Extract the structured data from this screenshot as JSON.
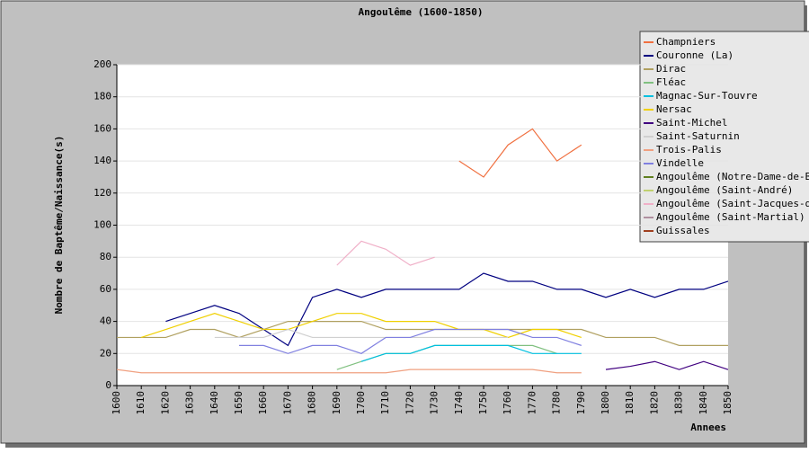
{
  "chart_data": {
    "type": "line",
    "title": "Angoulême (1600-1850)",
    "x_label": "Annees",
    "y_label": "Nombre de Baptême/Naissance(s)",
    "x": [
      1600,
      1610,
      1620,
      1630,
      1640,
      1650,
      1660,
      1670,
      1680,
      1690,
      1700,
      1710,
      1720,
      1730,
      1740,
      1750,
      1760,
      1770,
      1780,
      1790,
      1800,
      1810,
      1820,
      1830,
      1840,
      1850
    ],
    "xlim": [
      1600,
      1850
    ],
    "ylim": [
      0,
      200
    ],
    "yticks": [
      0,
      20,
      40,
      60,
      80,
      100,
      120,
      140,
      160,
      180,
      200
    ],
    "grid": true,
    "legend": "top-right",
    "series": [
      {
        "name": "Champniers",
        "color": "#f07040",
        "values": [
          null,
          null,
          null,
          null,
          null,
          null,
          null,
          null,
          null,
          null,
          null,
          null,
          null,
          null,
          140,
          130,
          150,
          160,
          140,
          150,
          null,
          null,
          null,
          null,
          null,
          null
        ]
      },
      {
        "name": "Couronne (La)",
        "color": "#000080",
        "values": [
          null,
          null,
          40,
          45,
          50,
          45,
          35,
          25,
          55,
          60,
          55,
          60,
          60,
          60,
          60,
          70,
          65,
          65,
          60,
          60,
          55,
          60,
          55,
          60,
          60,
          65
        ]
      },
      {
        "name": "Dirac",
        "color": "#b0a060",
        "values": [
          30,
          30,
          30,
          35,
          35,
          30,
          35,
          40,
          40,
          40,
          40,
          35,
          35,
          35,
          35,
          35,
          35,
          35,
          35,
          35,
          30,
          30,
          30,
          25,
          25,
          25
        ]
      },
      {
        "name": "Fléac",
        "color": "#80c080",
        "values": [
          null,
          null,
          null,
          null,
          null,
          null,
          null,
          null,
          null,
          10,
          15,
          20,
          20,
          25,
          25,
          25,
          25,
          25,
          20,
          null,
          null,
          null,
          null,
          null,
          null,
          null
        ]
      },
      {
        "name": "Magnac-Sur-Touvre",
        "color": "#00c0e0",
        "values": [
          null,
          null,
          null,
          null,
          null,
          null,
          null,
          null,
          null,
          null,
          15,
          20,
          20,
          25,
          25,
          25,
          25,
          20,
          20,
          20,
          null,
          null,
          null,
          null,
          null,
          null
        ]
      },
      {
        "name": "Nersac",
        "color": "#f0d000",
        "values": [
          null,
          30,
          35,
          40,
          45,
          40,
          35,
          35,
          40,
          45,
          45,
          40,
          40,
          40,
          35,
          35,
          30,
          35,
          35,
          30,
          null,
          null,
          null,
          null,
          null,
          null
        ]
      },
      {
        "name": "Saint-Michel",
        "color": "#400080",
        "values": [
          null,
          null,
          null,
          null,
          null,
          null,
          null,
          null,
          null,
          null,
          null,
          null,
          null,
          null,
          null,
          null,
          null,
          null,
          null,
          null,
          10,
          12,
          15,
          10,
          15,
          10
        ]
      },
      {
        "name": "Saint-Saturnin",
        "color": "#d0d0d0",
        "values": [
          null,
          null,
          null,
          null,
          30,
          30,
          30,
          35,
          30,
          30,
          30,
          30,
          30,
          30,
          30,
          30,
          30,
          null,
          null,
          null,
          null,
          null,
          null,
          null,
          null,
          null
        ]
      },
      {
        "name": "Trois-Palis",
        "color": "#f0a080",
        "values": [
          10,
          8,
          8,
          8,
          8,
          8,
          8,
          8,
          8,
          8,
          8,
          8,
          10,
          10,
          10,
          10,
          10,
          10,
          8,
          8,
          null,
          null,
          null,
          null,
          null,
          null
        ]
      },
      {
        "name": "Vindelle",
        "color": "#8080e0",
        "values": [
          null,
          null,
          null,
          null,
          null,
          25,
          25,
          20,
          25,
          25,
          20,
          30,
          30,
          35,
          35,
          35,
          35,
          30,
          30,
          25,
          null,
          null,
          null,
          null,
          null,
          null
        ]
      },
      {
        "name": "Angoulême (Notre-Dame-de-Beau",
        "color": "#608020",
        "values": [
          null,
          null,
          null,
          null,
          null,
          null,
          null,
          null,
          null,
          null,
          null,
          null,
          null,
          null,
          null,
          null,
          null,
          null,
          null,
          null,
          null,
          null,
          null,
          null,
          null,
          null
        ]
      },
      {
        "name": "Angoulême (Saint-André)",
        "color": "#c0d070",
        "values": [
          null,
          null,
          null,
          null,
          null,
          null,
          null,
          null,
          null,
          null,
          null,
          null,
          null,
          null,
          null,
          null,
          null,
          null,
          null,
          null,
          null,
          null,
          null,
          null,
          null,
          null
        ]
      },
      {
        "name": "Angoulême (Saint-Jacques-de-",
        "color": "#f0b0c8",
        "values": [
          null,
          null,
          null,
          null,
          null,
          null,
          null,
          null,
          null,
          75,
          90,
          85,
          75,
          80,
          null,
          null,
          null,
          null,
          null,
          null,
          null,
          null,
          null,
          null,
          null,
          null
        ]
      },
      {
        "name": "Angoulême (Saint-Martial)",
        "color": "#b090a0",
        "values": [
          null,
          null,
          null,
          null,
          null,
          null,
          null,
          null,
          null,
          null,
          null,
          null,
          null,
          null,
          null,
          null,
          null,
          null,
          null,
          null,
          null,
          null,
          null,
          null,
          null,
          null
        ]
      },
      {
        "name": "Guissales",
        "color": "#a04020",
        "values": [
          null,
          null,
          null,
          null,
          null,
          null,
          null,
          null,
          null,
          null,
          null,
          null,
          null,
          null,
          null,
          null,
          null,
          null,
          null,
          null,
          null,
          null,
          null,
          null,
          null,
          null
        ]
      }
    ]
  }
}
